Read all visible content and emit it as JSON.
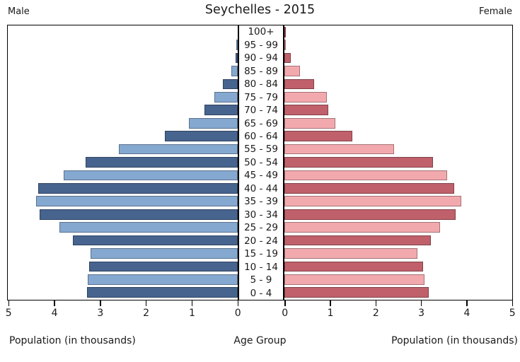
{
  "title": "Seychelles - 2015",
  "left_header": "Male",
  "right_header": "Female",
  "xlabel_left": "Population (in thousands)",
  "xlabel_center": "Age Group",
  "xlabel_right": "Population (in thousands)",
  "colors": {
    "male_dark": "#46648e",
    "male_light": "#85a8d0",
    "female_dark": "#c0606a",
    "female_light": "#f2a9ad",
    "axis": "#000000"
  },
  "chart_data": {
    "type": "bar",
    "subtype": "population-pyramid",
    "title": "Seychelles - 2015",
    "xlabel": "Population (in thousands)",
    "center_label": "Age Group",
    "unit": "thousands",
    "xlim": [
      0,
      5
    ],
    "xticks": [
      0,
      1,
      2,
      3,
      4,
      5
    ],
    "categories_top_to_bottom": [
      "100+",
      "95 - 99",
      "90 - 94",
      "85 - 89",
      "80 - 84",
      "75 - 79",
      "70 - 74",
      "65 - 69",
      "60 - 64",
      "55 - 59",
      "50 - 54",
      "45 - 49",
      "40 - 44",
      "35 - 39",
      "30 - 34",
      "25 - 29",
      "20 - 24",
      "15 - 19",
      "10 - 14",
      "5 - 9",
      "0 - 4"
    ],
    "series": [
      {
        "name": "Male",
        "side": "left",
        "values_top_to_bottom": [
          0.01,
          0.03,
          0.06,
          0.15,
          0.34,
          0.52,
          0.74,
          1.08,
          1.6,
          2.6,
          3.33,
          3.8,
          4.35,
          4.4,
          4.33,
          3.9,
          3.6,
          3.21,
          3.24,
          3.27,
          3.3
        ]
      },
      {
        "name": "Female",
        "side": "right",
        "values_top_to_bottom": [
          0.02,
          0.05,
          0.16,
          0.36,
          0.67,
          0.94,
          0.98,
          1.13,
          1.51,
          2.42,
          3.27,
          3.58,
          3.74,
          3.89,
          3.77,
          3.43,
          3.23,
          2.93,
          3.06,
          3.09,
          3.19
        ]
      }
    ]
  }
}
